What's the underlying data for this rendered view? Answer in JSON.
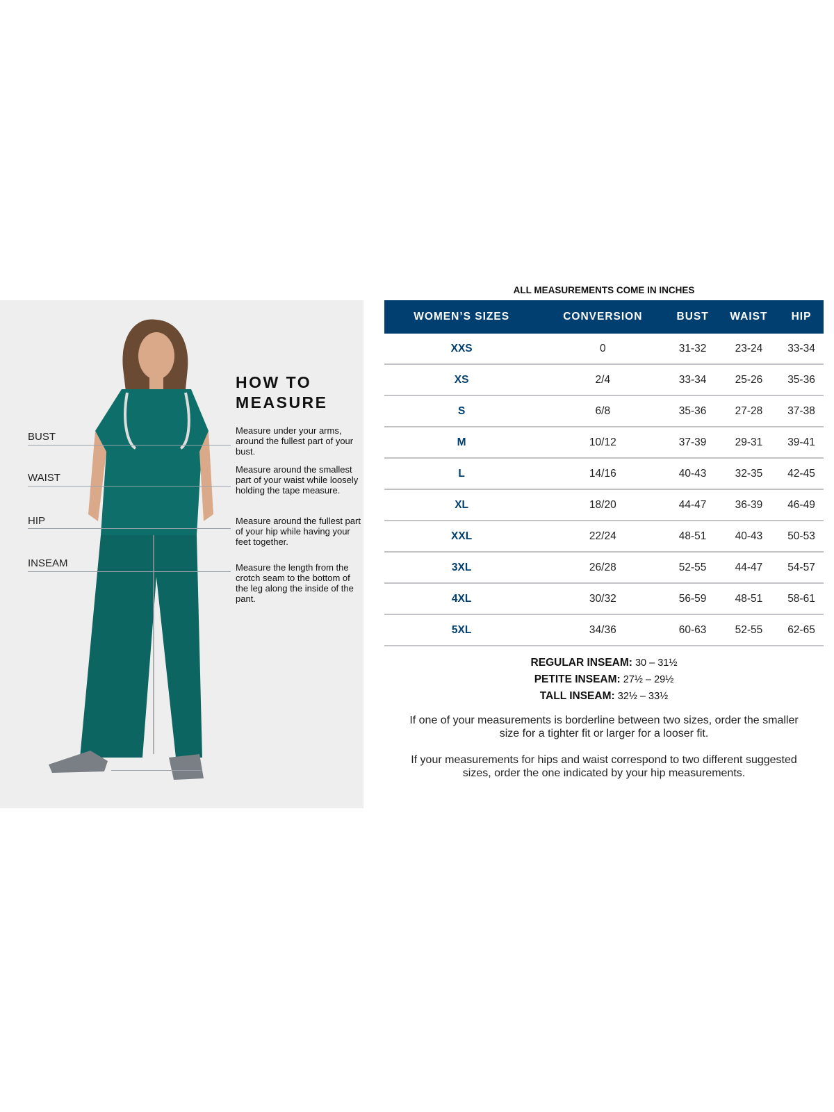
{
  "how_to": {
    "heading_line1": "HOW TO",
    "heading_line2": "MEASURE",
    "labels": [
      "BUST",
      "WAIST",
      "HIP",
      "INSEAM"
    ],
    "descriptions": [
      "Measure under your arms, around the fullest part of your bust.",
      "Measure around the smallest part of your waist while loosely holding the tape measure.",
      "Measure around the fullest part of your hip while having your feet together.",
      "Measure the length from the crotch seam to the bottom of the leg along the inside of the pant."
    ]
  },
  "table": {
    "title": "ALL MEASUREMENTS COME IN INCHES",
    "header_color": "#003f6f",
    "columns": [
      "WOMEN’S SIZES",
      "CONVERSION",
      "BUST",
      "WAIST",
      "HIP"
    ],
    "rows": [
      [
        "XXS",
        "0",
        "31-32",
        "23-24",
        "33-34"
      ],
      [
        "XS",
        "2/4",
        "33-34",
        "25-26",
        "35-36"
      ],
      [
        "S",
        "6/8",
        "35-36",
        "27-28",
        "37-38"
      ],
      [
        "M",
        "10/12",
        "37-39",
        "29-31",
        "39-41"
      ],
      [
        "L",
        "14/16",
        "40-43",
        "32-35",
        "42-45"
      ],
      [
        "XL",
        "18/20",
        "44-47",
        "36-39",
        "46-49"
      ],
      [
        "XXL",
        "22/24",
        "48-51",
        "40-43",
        "50-53"
      ],
      [
        "3XL",
        "26/28",
        "52-55",
        "44-47",
        "54-57"
      ],
      [
        "4XL",
        "30/32",
        "56-59",
        "48-51",
        "58-61"
      ],
      [
        "5XL",
        "34/36",
        "60-63",
        "52-55",
        "62-65"
      ]
    ]
  },
  "inseams": [
    {
      "label": "REGULAR INSEAM:",
      "value": "30  – 31½"
    },
    {
      "label": "PETITE INSEAM:",
      "value": "27½ – 29½"
    },
    {
      "label": "TALL INSEAM:",
      "value": "32½ – 33½"
    }
  ],
  "notes": [
    "If one of your measurements is borderline between two sizes, order the smaller size for a tighter fit or larger for a looser fit.",
    "If your measurements for hips and waist correspond to two different suggested sizes, order the one indicated by your hip measurements."
  ]
}
